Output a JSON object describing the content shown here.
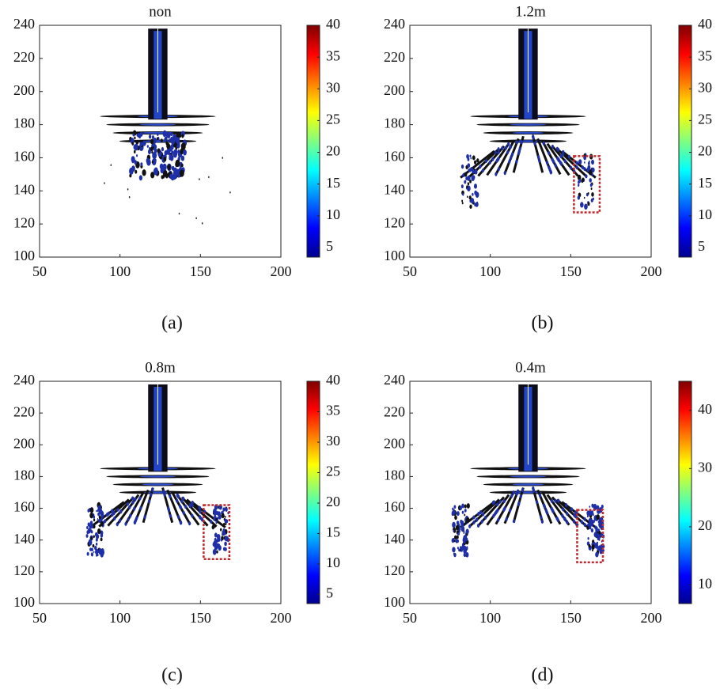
{
  "chart_data": [
    {
      "type": "field",
      "title": "non",
      "caption": "(a)",
      "xlim": [
        50,
        200
      ],
      "xticks": [
        50,
        100,
        150,
        200
      ],
      "ylim": [
        100,
        240
      ],
      "yticks": [
        100,
        120,
        140,
        160,
        180,
        200,
        220,
        240
      ],
      "colorbar": {
        "colormap": "jet",
        "clim": [
          3.5,
          40
        ],
        "ticks": [
          5,
          10,
          15,
          20,
          25,
          30,
          35,
          40
        ]
      }
    },
    {
      "type": "field",
      "title": "1.2m",
      "caption": "(b)",
      "xlim": [
        50,
        200
      ],
      "xticks": [
        50,
        100,
        150,
        200
      ],
      "ylim": [
        100,
        240
      ],
      "yticks": [
        100,
        120,
        140,
        160,
        180,
        200,
        220,
        240
      ],
      "colorbar": {
        "colormap": "jet",
        "clim": [
          3.5,
          40
        ],
        "ticks": [
          5,
          10,
          15,
          20,
          25,
          30,
          35,
          40
        ]
      },
      "highlight": {
        "color": "#c0282d",
        "x": [
          152,
          168
        ],
        "y": [
          127,
          161
        ]
      }
    },
    {
      "type": "field",
      "title": "0.8m",
      "caption": "(c)",
      "xlim": [
        50,
        200
      ],
      "xticks": [
        50,
        100,
        150,
        200
      ],
      "ylim": [
        100,
        240
      ],
      "yticks": [
        100,
        120,
        140,
        160,
        180,
        200,
        220,
        240
      ],
      "colorbar": {
        "colormap": "jet",
        "clim": [
          3.5,
          40
        ],
        "ticks": [
          5,
          10,
          15,
          20,
          25,
          30,
          35,
          40
        ]
      },
      "highlight": {
        "color": "#c0282d",
        "x": [
          152,
          168
        ],
        "y": [
          128,
          162
        ]
      }
    },
    {
      "type": "field",
      "title": "0.4m",
      "caption": "(d)",
      "xlim": [
        50,
        200
      ],
      "xticks": [
        50,
        100,
        150,
        200
      ],
      "ylim": [
        100,
        240
      ],
      "yticks": [
        100,
        120,
        140,
        160,
        180,
        200,
        220,
        240
      ],
      "colorbar": {
        "colormap": "jet",
        "clim": [
          6.8,
          45
        ],
        "ticks": [
          10,
          20,
          30,
          40
        ]
      },
      "highlight": {
        "color": "#c0282d",
        "x": [
          154,
          170
        ],
        "y": [
          126,
          159
        ]
      }
    }
  ]
}
